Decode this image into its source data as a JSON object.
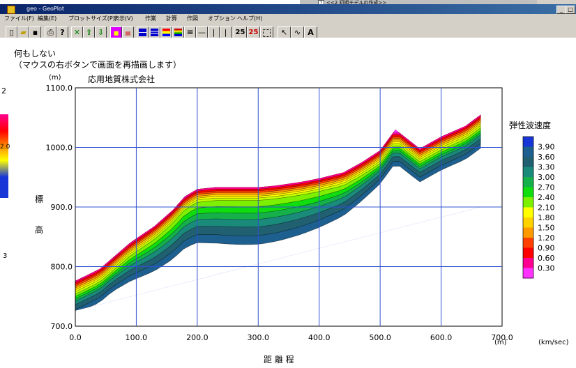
{
  "background_window": {
    "strip_text": "<<2 初期モデルの作成>>",
    "strip_marker": "?",
    "left_labels": [
      "2",
      "2.0",
      "3"
    ]
  },
  "window": {
    "title": "geo - GeoPlot",
    "minimize": "_",
    "maximize": "□"
  },
  "menu": [
    "ファイル(F)",
    "編集(E)",
    "プロットサイズ(P)",
    "表示(V)",
    "作業",
    "計算",
    "作図",
    "オプション",
    "ヘルプ(H)"
  ],
  "toolbar": {
    "labels": {
      "num25a": "25",
      "num25b": "25",
      "text_tool": "A"
    }
  },
  "status": {
    "line1": "何もしない",
    "line2": "（マウスの右ボタンで画面を再描画します）"
  },
  "company": "応用地質株式会社",
  "colors": {
    "accent": "#0a246a",
    "grid": "#3050d0",
    "palette": [
      "#ff33ff",
      "#ff0090",
      "#ff0000",
      "#ff4000",
      "#ff9900",
      "#ffd200",
      "#ffff00",
      "#c8ff00",
      "#7cf000",
      "#10dd10",
      "#15b04a",
      "#1a8a7a",
      "#206070",
      "#1d5f8e",
      "#1836d8"
    ]
  },
  "chart_data": {
    "type": "heatmap",
    "title": "",
    "xlabel": "距 離 程",
    "xunit": "(m)",
    "ylabel": "標 高",
    "yunit": "(m)",
    "xlim": [
      0,
      700
    ],
    "ylim": [
      700,
      1100
    ],
    "xticks": [
      "0.0",
      "100.0",
      "200.0",
      "300.0",
      "400.0",
      "500.0",
      "600.0",
      "700.0"
    ],
    "yticks": [
      "700.0",
      "800.0",
      "900.0",
      "1000.0",
      "1100.0"
    ],
    "grid": true,
    "surface": [
      [
        0,
        776
      ],
      [
        40,
        796
      ],
      [
        90,
        840
      ],
      [
        130,
        868
      ],
      [
        160,
        895
      ],
      [
        180,
        918
      ],
      [
        200,
        930
      ],
      [
        230,
        933
      ],
      [
        300,
        933
      ],
      [
        330,
        936
      ],
      [
        370,
        942
      ],
      [
        400,
        948
      ],
      [
        440,
        958
      ],
      [
        470,
        975
      ],
      [
        500,
        995
      ],
      [
        525,
        1030
      ],
      [
        540,
        1018
      ],
      [
        565,
        998
      ],
      [
        600,
        1018
      ],
      [
        640,
        1036
      ],
      [
        665,
        1055
      ]
    ],
    "base_line": [
      [
        0,
        726
      ],
      [
        665,
        900
      ]
    ],
    "legend": {
      "title": "弾性波速度",
      "unit": "(km/sec)",
      "levels": [
        "3.90",
        "3.60",
        "3.30",
        "3.00",
        "2.70",
        "2.40",
        "2.10",
        "1.80",
        "1.50",
        "1.20",
        "0.90",
        "0.60",
        "0.30"
      ]
    }
  }
}
